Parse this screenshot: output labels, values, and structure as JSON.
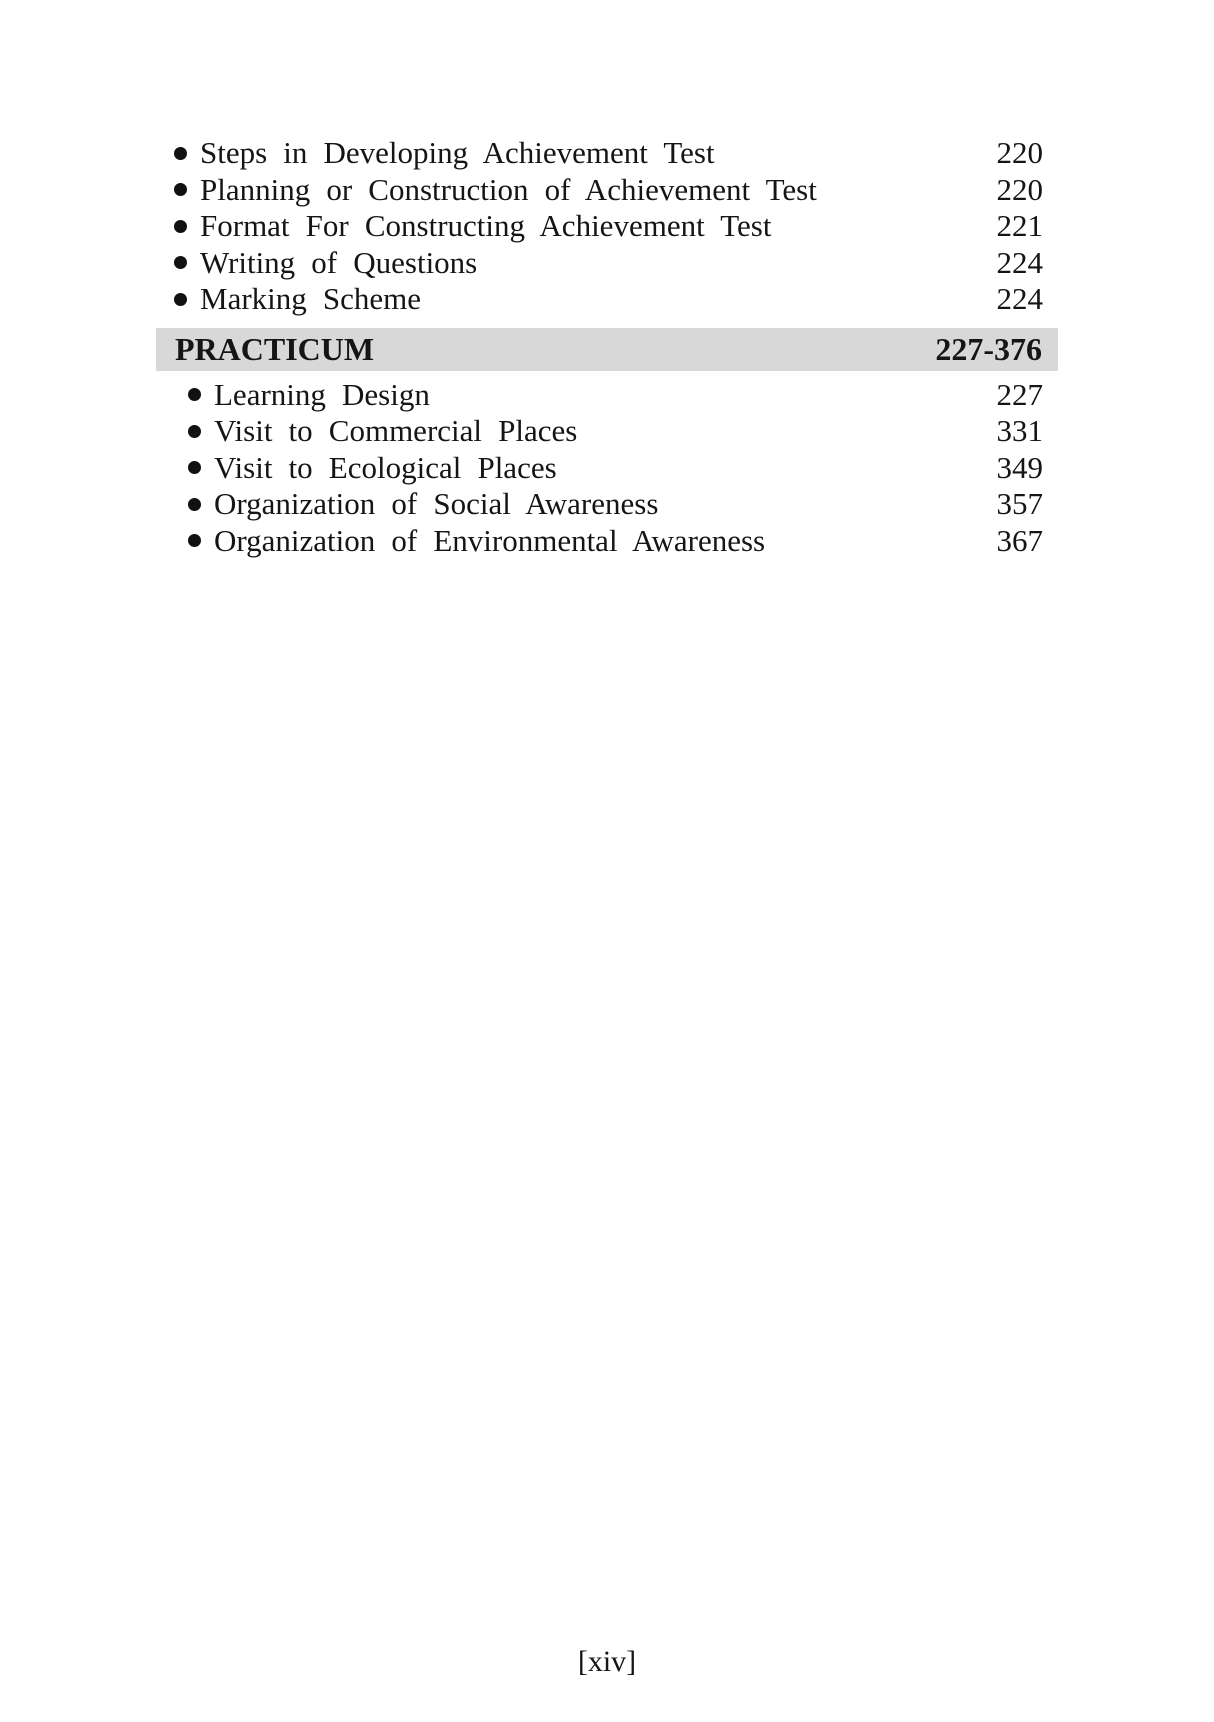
{
  "colors": {
    "section_bar_bg": "#d8d8d8",
    "text": "#151515",
    "page_bg": "#ffffff"
  },
  "document": {
    "sections": [
      {
        "items": [
          {
            "label": "Steps in Developing Achievement Test",
            "page": "220"
          },
          {
            "label": "Planning or Construction of Achievement Test",
            "page": "220"
          },
          {
            "label": "Format For Constructing Achievement Test",
            "page": "221"
          },
          {
            "label": "Writing of Questions",
            "page": "224"
          },
          {
            "label": "Marking Scheme",
            "page": "224"
          }
        ]
      },
      {
        "header": {
          "title": "PRACTICUM",
          "pages": "227-376"
        },
        "items": [
          {
            "label": "Learning Design",
            "page": "227"
          },
          {
            "label": "Visit to Commercial Places",
            "page": "331"
          },
          {
            "label": "Visit to Ecological Places",
            "page": "349"
          },
          {
            "label": "Organization of Social Awareness",
            "page": "357"
          },
          {
            "label": "Organization of Environmental Awareness",
            "page": "367"
          }
        ]
      }
    ],
    "footer": {
      "page_label": "[xiv]"
    }
  }
}
